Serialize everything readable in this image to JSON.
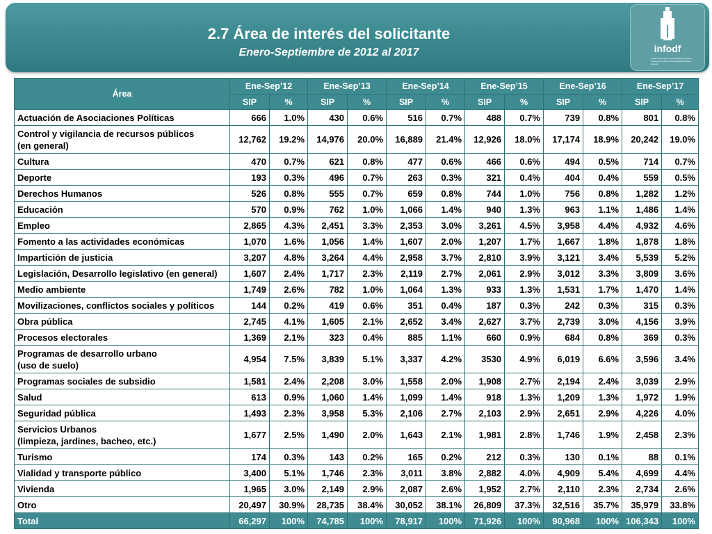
{
  "header": {
    "title": "2.7 Área de interés del solicitante",
    "subtitle": "Enero-Septiembre de 2012 al 2017",
    "logo_text": "infodf",
    "logo_small": "Instituto de Acceso a la Información Pública y Protección de Datos Personales del Distrito Federal"
  },
  "colors": {
    "banner": "#3d8b91",
    "header_cell": "#3e8c92",
    "border": "#2d7479"
  },
  "table": {
    "area_header": "Área",
    "years": [
      "Ene-Sep’12",
      "Ene-Sep’13",
      "Ene-Sep’14",
      "Ene-Sep’15",
      "Ene-Sep’16",
      "Ene-Sep’17"
    ],
    "sub_headers": [
      "SIP",
      "%",
      "SIP",
      "%",
      "SIP",
      "%",
      "SIP",
      "%",
      "SIP",
      "%",
      "SIP",
      "%"
    ],
    "rows": [
      {
        "area": [
          "Actuación de Asociaciones Políticas"
        ],
        "values": [
          "666",
          "1.0%",
          "430",
          "0.6%",
          "516",
          "0.7%",
          "488",
          "0.7%",
          "739",
          "0.8%",
          "801",
          "0.8%"
        ]
      },
      {
        "area": [
          "Control y vigilancia de recursos públicos",
          "(en general)"
        ],
        "values": [
          "12,762",
          "19.2%",
          "14,976",
          "20.0%",
          "16,889",
          "21.4%",
          "12,926",
          "18.0%",
          "17,174",
          "18.9%",
          "20,242",
          "19.0%"
        ]
      },
      {
        "area": [
          "Cultura"
        ],
        "values": [
          "470",
          "0.7%",
          "621",
          "0.8%",
          "477",
          "0.6%",
          "466",
          "0.6%",
          "494",
          "0.5%",
          "714",
          "0.7%"
        ]
      },
      {
        "area": [
          "Deporte"
        ],
        "values": [
          "193",
          "0.3%",
          "496",
          "0.7%",
          "263",
          "0.3%",
          "321",
          "0.4%",
          "404",
          "0.4%",
          "559",
          "0.5%"
        ]
      },
      {
        "area": [
          "Derechos Humanos"
        ],
        "values": [
          "526",
          "0.8%",
          "555",
          "0.7%",
          "659",
          "0.8%",
          "744",
          "1.0%",
          "756",
          "0.8%",
          "1,282",
          "1.2%"
        ]
      },
      {
        "area": [
          "Educación"
        ],
        "values": [
          "570",
          "0.9%",
          "762",
          "1.0%",
          "1,066",
          "1.4%",
          "940",
          "1.3%",
          "963",
          "1.1%",
          "1,486",
          "1.4%"
        ]
      },
      {
        "area": [
          "Empleo"
        ],
        "values": [
          "2,865",
          "4.3%",
          "2,451",
          "3.3%",
          "2,353",
          "3.0%",
          "3,261",
          "4.5%",
          "3,958",
          "4.4%",
          "4,932",
          "4.6%"
        ]
      },
      {
        "area": [
          "Fomento a las actividades económicas"
        ],
        "values": [
          "1,070",
          "1.6%",
          "1,056",
          "1.4%",
          "1,607",
          "2.0%",
          "1,207",
          "1.7%",
          "1,667",
          "1.8%",
          "1,878",
          "1.8%"
        ]
      },
      {
        "area": [
          "Impartición de justicia"
        ],
        "values": [
          "3,207",
          "4.8%",
          "3,264",
          "4.4%",
          "2,958",
          "3.7%",
          "2,810",
          "3.9%",
          "3,121",
          "3.4%",
          "5,539",
          "5.2%"
        ]
      },
      {
        "area": [
          "Legislación, Desarrollo legislativo (en general)"
        ],
        "values": [
          "1,607",
          "2.4%",
          "1,717",
          "2.3%",
          "2,119",
          "2.7%",
          "2,061",
          "2.9%",
          "3,012",
          "3.3%",
          "3,809",
          "3.6%"
        ]
      },
      {
        "area": [
          "Medio ambiente"
        ],
        "values": [
          "1,749",
          "2.6%",
          "782",
          "1.0%",
          "1,064",
          "1.3%",
          "933",
          "1.3%",
          "1,531",
          "1.7%",
          "1,470",
          "1.4%"
        ]
      },
      {
        "area": [
          "Movilizaciones, conflictos sociales y políticos"
        ],
        "values": [
          "144",
          "0.2%",
          "419",
          "0.6%",
          "351",
          "0.4%",
          "187",
          "0.3%",
          "242",
          "0.3%",
          "315",
          "0.3%"
        ]
      },
      {
        "area": [
          "Obra pública"
        ],
        "values": [
          "2,745",
          "4.1%",
          "1,605",
          "2.1%",
          "2,652",
          "3.4%",
          "2,627",
          "3.7%",
          "2,739",
          "3.0%",
          "4,156",
          "3.9%"
        ]
      },
      {
        "area": [
          "Procesos electorales"
        ],
        "values": [
          "1,369",
          "2.1%",
          "323",
          "0.4%",
          "885",
          "1.1%",
          "660",
          "0.9%",
          "684",
          "0.8%",
          "369",
          "0.3%"
        ]
      },
      {
        "area": [
          "Programas de desarrollo urbano",
          "(uso de suelo)"
        ],
        "values": [
          "4,954",
          "7.5%",
          "3,839",
          "5.1%",
          "3,337",
          "4.2%",
          "3530",
          "4.9%",
          "6,019",
          "6.6%",
          "3,596",
          "3.4%"
        ]
      },
      {
        "area": [
          "Programas sociales de subsidio"
        ],
        "values": [
          "1,581",
          "2.4%",
          "2,208",
          "3.0%",
          "1,558",
          "2.0%",
          "1,908",
          "2.7%",
          "2,194",
          "2.4%",
          "3,039",
          "2.9%"
        ]
      },
      {
        "area": [
          "Salud"
        ],
        "values": [
          "613",
          "0.9%",
          "1,060",
          "1.4%",
          "1,099",
          "1.4%",
          "918",
          "1.3%",
          "1,209",
          "1.3%",
          "1,972",
          "1.9%"
        ]
      },
      {
        "area": [
          "Seguridad pública"
        ],
        "values": [
          "1,493",
          "2.3%",
          "3,958",
          "5.3%",
          "2,106",
          "2.7%",
          "2,103",
          "2.9%",
          "2,651",
          "2.9%",
          "4,226",
          "4.0%"
        ]
      },
      {
        "area": [
          "Servicios Urbanos",
          "(limpieza, jardines, bacheo, etc.)"
        ],
        "values": [
          "1,677",
          "2.5%",
          "1,490",
          "2.0%",
          "1,643",
          "2.1%",
          "1,981",
          "2.8%",
          "1,746",
          "1.9%",
          "2,458",
          "2.3%"
        ]
      },
      {
        "area": [
          "Turismo"
        ],
        "values": [
          "174",
          "0.3%",
          "143",
          "0.2%",
          "165",
          "0.2%",
          "212",
          "0.3%",
          "130",
          "0.1%",
          "88",
          "0.1%"
        ]
      },
      {
        "area": [
          "Vialidad y transporte público"
        ],
        "values": [
          "3,400",
          "5.1%",
          "1,746",
          "2.3%",
          "3,011",
          "3.8%",
          "2,882",
          "4.0%",
          "4,909",
          "5.4%",
          "4,699",
          "4.4%"
        ]
      },
      {
        "area": [
          "Vivienda"
        ],
        "values": [
          "1,965",
          "3.0%",
          "2,149",
          "2.9%",
          "2,087",
          "2.6%",
          "1,952",
          "2.7%",
          "2,110",
          "2.3%",
          "2,734",
          "2.6%"
        ]
      },
      {
        "area": [
          "Otro"
        ],
        "values": [
          "20,497",
          "30.9%",
          "28,735",
          "38.4%",
          "30,052",
          "38.1%",
          "26,809",
          "37.3%",
          "32,516",
          "35.7%",
          "35,979",
          "33.8%"
        ]
      }
    ],
    "total": {
      "label": "Total",
      "values": [
        "66,297",
        "100%",
        "74,785",
        "100%",
        "78,917",
        "100%",
        "71,926",
        "100%",
        "90,968",
        "100%",
        "106,343",
        "100%"
      ]
    }
  }
}
